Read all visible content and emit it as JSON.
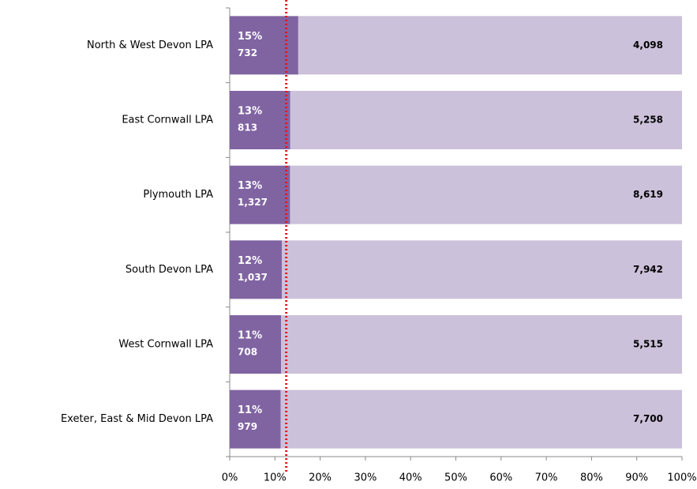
{
  "chart_data": {
    "type": "stacked-bar-horizontal",
    "categories": [
      "North & West Devon LPA",
      "East Cornwall LPA",
      "Plymouth LPA",
      "South Devon LPA",
      "West Cornwall LPA",
      "Exeter, East & Mid Devon LPA"
    ],
    "series": [
      {
        "color": "#8064a2",
        "values": [
          15.16,
          13.39,
          13.34,
          11.55,
          11.38,
          11.28
        ],
        "value_labels": [
          "15%",
          "13%",
          "13%",
          "12%",
          "11%",
          "11%"
        ],
        "count_labels": [
          "732",
          "813",
          "1,327",
          "1,037",
          "708",
          "979"
        ]
      },
      {
        "color": "#ccc1da",
        "values": [
          84.84,
          86.61,
          86.66,
          88.45,
          88.62,
          88.72
        ],
        "count_labels": [
          "4,098",
          "5,258",
          "8,619",
          "7,942",
          "5,515",
          "7,700"
        ]
      }
    ],
    "xlim": [
      0,
      100
    ],
    "xticks": [
      {
        "value": 0,
        "label": "0%"
      },
      {
        "value": 10,
        "label": "10%"
      },
      {
        "value": 20,
        "label": "20%"
      },
      {
        "value": 30,
        "label": "30%"
      },
      {
        "value": 40,
        "label": "40%"
      },
      {
        "value": 50,
        "label": "50%"
      },
      {
        "value": 60,
        "label": "60%"
      },
      {
        "value": 70,
        "label": "70%"
      },
      {
        "value": 80,
        "label": "80%"
      },
      {
        "value": 90,
        "label": "90%"
      },
      {
        "value": 100,
        "label": "100%"
      }
    ],
    "reference_line": {
      "value": 12.5,
      "color": "#e8141b"
    }
  }
}
